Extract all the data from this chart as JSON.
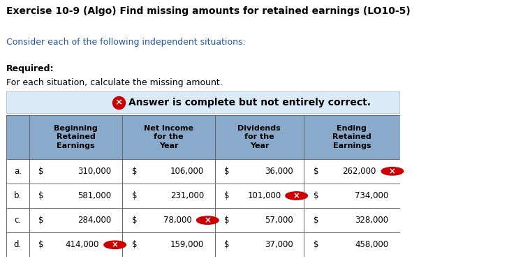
{
  "title": "Exercise 10-9 (Algo) Find missing amounts for retained earnings (LO10-5)",
  "subtitle1": "Consider each of the following independent situations:",
  "subtitle1_color": "#2255aa",
  "subtitle2_bold": "Required:",
  "subtitle2_normal": "For each situation, calculate the missing amount.",
  "subtitle2_normal_color": "#000000",
  "alert_text": "Answer is complete but not entirely correct.",
  "alert_bg": "#daeaf7",
  "alert_border": "#aac8e0",
  "table_header_bg": "#8aaacc",
  "table_border": "#666666",
  "col_headers": [
    "Beginning\nRetained\nEarnings",
    "Net Income\nfor the\nYear",
    "Dividends\nfor the\nYear",
    "Ending\nRetained\nEarnings"
  ],
  "row_labels": [
    "a.",
    "b.",
    "c.",
    "d."
  ],
  "rows_data": [
    {
      "beg": [
        "$",
        "310,000",
        false
      ],
      "ni": [
        "$",
        "106,000",
        false
      ],
      "div": [
        "$",
        "36,000",
        false
      ],
      "end": [
        "$",
        "262,000",
        true
      ]
    },
    {
      "beg": [
        "$",
        "581,000",
        false
      ],
      "ni": [
        "$",
        "231,000",
        false
      ],
      "div": [
        "$",
        "101,000",
        true
      ],
      "end": [
        "$",
        "734,000",
        false
      ]
    },
    {
      "beg": [
        "$",
        "284,000",
        false
      ],
      "ni": [
        "$",
        "78,000",
        true
      ],
      "div": [
        "$",
        "57,000",
        false
      ],
      "end": [
        "$",
        "328,000",
        false
      ]
    },
    {
      "beg": [
        "$",
        "414,000",
        true
      ],
      "ni": [
        "$",
        "159,000",
        false
      ],
      "div": [
        "$",
        "37,000",
        false
      ],
      "end": [
        "$",
        "458,000",
        false
      ]
    }
  ]
}
